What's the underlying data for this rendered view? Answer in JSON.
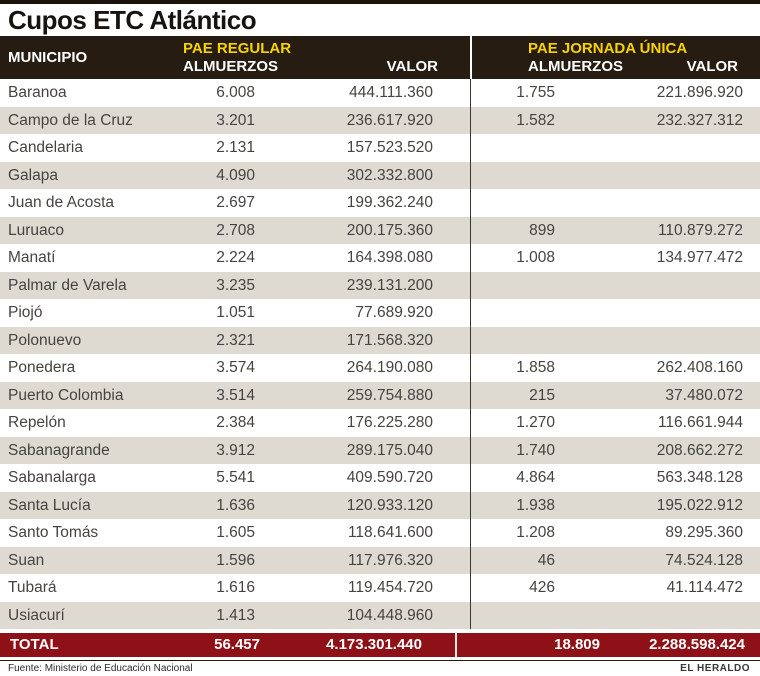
{
  "page_title": "Cupos ETC Atlántico",
  "table_header": {
    "municipio": "MUNICIPIO",
    "group_pae_regular": "PAE REGULAR",
    "group_pae_jornada": "PAE JORNADA ÚNICA",
    "almuerzos": "ALMUERZOS",
    "valor": "VALOR"
  },
  "chart_data": {
    "type": "table",
    "title": "Cupos ETC Atlántico",
    "columns": [
      "MUNICIPIO",
      "PAE REGULAR ALMUERZOS",
      "PAE REGULAR VALOR",
      "PAE JORNADA ÚNICA ALMUERZOS",
      "PAE JORNADA ÚNICA VALOR"
    ],
    "rows": [
      [
        "Baranoa",
        "6.008",
        "444.111.360",
        "1.755",
        "221.896.920"
      ],
      [
        "Campo de la Cruz",
        "3.201",
        "236.617.920",
        "1.582",
        "232.327.312"
      ],
      [
        "Candelaria",
        "2.131",
        "157.523.520",
        "",
        ""
      ],
      [
        "Galapa",
        "4.090",
        "302.332.800",
        "",
        ""
      ],
      [
        "Juan de Acosta",
        "2.697",
        "199.362.240",
        "",
        ""
      ],
      [
        "Luruaco",
        "2.708",
        "200.175.360",
        "899",
        "110.879.272"
      ],
      [
        "Manatí",
        "2.224",
        "164.398.080",
        "1.008",
        "134.977.472"
      ],
      [
        "Palmar de Varela",
        "3.235",
        "239.131.200",
        "",
        ""
      ],
      [
        "Piojó",
        "1.051",
        "77.689.920",
        "",
        ""
      ],
      [
        "Polonuevo",
        "2.321",
        "171.568.320",
        "",
        ""
      ],
      [
        "Ponedera",
        "3.574",
        "264.190.080",
        "1.858",
        "262.408.160"
      ],
      [
        "Puerto Colombia",
        "3.514",
        "259.754.880",
        "215",
        "37.480.072"
      ],
      [
        "Repelón",
        "2.384",
        "176.225.280",
        "1.270",
        "116.661.944"
      ],
      [
        "Sabanagrande",
        "3.912",
        "289.175.040",
        "1.740",
        "208.662.272"
      ],
      [
        "Sabanalarga",
        "5.541",
        "409.590.720",
        "4.864",
        "563.348.128"
      ],
      [
        "Santa Lucía",
        "1.636",
        "120.933.120",
        "1.938",
        "195.022.912"
      ],
      [
        "Santo Tomás",
        "1.605",
        "118.641.600",
        "1.208",
        "89.295.360"
      ],
      [
        "Suan",
        "1.596",
        "117.976.320",
        "46",
        "74.524.128"
      ],
      [
        "Tubará",
        "1.616",
        "119.454.720",
        "426",
        "41.114.472"
      ],
      [
        "Usiacurí",
        "1.413",
        "104.448.960",
        "",
        ""
      ]
    ],
    "total_row": [
      "TOTAL",
      "56.457",
      "4.173.301.440",
      "18.809",
      "2.288.598.424"
    ]
  },
  "footer": {
    "source": "Fuente: Ministerio de Educación Nacional",
    "credit": "EL HERALDO"
  },
  "colors": {
    "header_bg": "#271c11",
    "accent_yellow": "#f8d300",
    "row_shade": "#dedad2",
    "total_bg": "#8e1117",
    "body_text": "#454440"
  }
}
